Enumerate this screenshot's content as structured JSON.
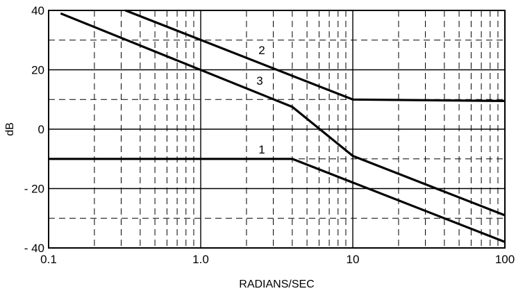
{
  "chart_data": {
    "type": "line",
    "xlabel": "RADIANS/SEC",
    "ylabel": "dB",
    "x_scale": "log",
    "xlim": [
      0.1,
      100
    ],
    "ylim": [
      -40,
      40
    ],
    "x_ticks": [
      0.1,
      1,
      10,
      100
    ],
    "x_tick_labels": [
      "0.1",
      "1.0",
      "10",
      "100"
    ],
    "y_ticks": [
      -40,
      -20,
      0,
      20,
      40
    ],
    "y_tick_labels": [
      "- 40",
      "- 20",
      "0",
      "20",
      "40"
    ],
    "grid": true,
    "series": [
      {
        "name": "1",
        "x": [
          0.1,
          4,
          100
        ],
        "y": [
          -10,
          -10,
          -38
        ]
      },
      {
        "name": "2",
        "x": [
          0.32,
          10,
          100
        ],
        "y": [
          40,
          10,
          9.5
        ]
      },
      {
        "name": "3",
        "x": [
          0.12,
          4,
          10,
          100
        ],
        "y": [
          39,
          7.5,
          -9,
          -29
        ]
      }
    ]
  }
}
